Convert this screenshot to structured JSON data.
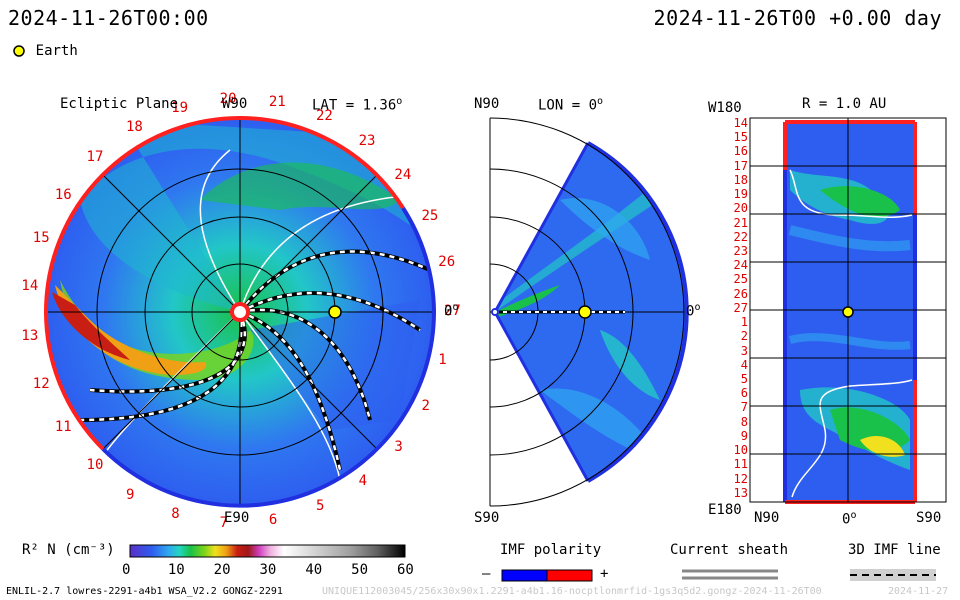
{
  "header": {
    "datetime_left": "2024-11-26T00:00",
    "datetime_right": "2024-11-26T00 +0.00 day",
    "legend_earth": "Earth"
  },
  "panels": {
    "ecliptic": {
      "title": "Ecliptic Plane",
      "top_label": "W90",
      "bottom_label": "E90",
      "right_label": "0",
      "lat_label": "LAT = 1.36",
      "deg": "o",
      "carrington_numbers": [
        "1",
        "2",
        "3",
        "4",
        "5",
        "6",
        "7",
        "8",
        "9",
        "10",
        "11",
        "12",
        "13",
        "14",
        "15",
        "16",
        "17",
        "18",
        "19",
        "20",
        "21",
        "22",
        "23",
        "24",
        "25",
        "26",
        "27"
      ]
    },
    "meridional": {
      "top_label": "N90",
      "bottom_label": "S90",
      "lon_label": "LON = 0",
      "right_label": "0",
      "deg": "o"
    },
    "radial": {
      "top_left_label": "W180",
      "bottom_left_label": "E180",
      "r_label": "R = 1.0 AU",
      "bottom_axis": [
        "N90",
        "0",
        "S90"
      ],
      "deg": "o",
      "row_labels": [
        "14",
        "15",
        "16",
        "17",
        "18",
        "19",
        "20",
        "21",
        "22",
        "23",
        "24",
        "25",
        "26",
        "27",
        "1",
        "2",
        "3",
        "4",
        "5",
        "6",
        "7",
        "8",
        "9",
        "10",
        "11",
        "12",
        "13"
      ]
    }
  },
  "colorbar": {
    "label": "R² N (cm⁻³)",
    "ticks": [
      "0",
      "10",
      "20",
      "30",
      "40",
      "50",
      "60"
    ],
    "stops": [
      "#5a2fc8",
      "#2e5ef0",
      "#2fa8f0",
      "#22d6c0",
      "#19c14a",
      "#7ad419",
      "#f0e01e",
      "#f0a014",
      "#c81e14",
      "#a01818",
      "#d040c0",
      "#f0b0e0",
      "#ffffff",
      "#d0d0d0",
      "#a0a0a0",
      "#707070",
      "#404040",
      "#000000"
    ]
  },
  "legend": {
    "imf_polarity": "IMF polarity",
    "minus": "–",
    "plus": "+",
    "current_sheath": "Current sheath",
    "imf_line": "3D IMF line",
    "neg_color": "#0000ff",
    "pos_color": "#ff0000"
  },
  "footer": {
    "model_info": "ENLIL-2.7 lowres-2291-a4b1 WSA_V2.2 GONGZ-2291",
    "run_id": "UNIQUE112003045/256x30x90x1.2291-a4b1.16-nocptlonmrfid-1gs3q5d2.gongz-2024-11-26T00",
    "date_stamp": "2024-11-27"
  },
  "colors": {
    "earth": "#ffff00",
    "red_boundary": "#ff2020",
    "blue_boundary": "#2030e0"
  },
  "chart_data": {
    "type": "heatmap",
    "quantity": "R² N (cm⁻³)",
    "colorbar_range": [
      0,
      60
    ],
    "earth": {
      "lat_deg": 1.36,
      "lon_deg": 0,
      "r_au": 1.0
    },
    "time": "2024-11-26T00 +0.00 day"
  }
}
